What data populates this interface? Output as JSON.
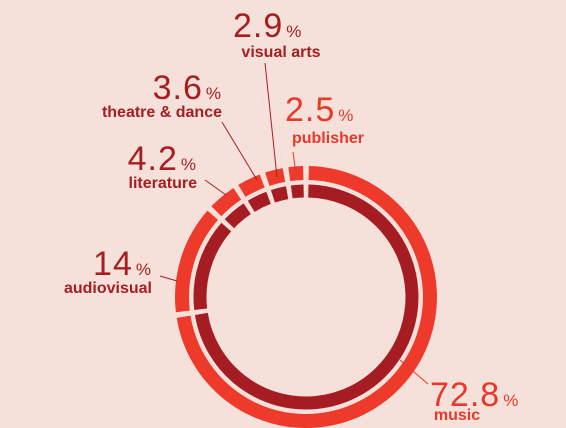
{
  "chart_data": {
    "type": "donut",
    "categories": [
      "music",
      "audiovisual",
      "literature",
      "theatre & dance",
      "visual arts",
      "publisher"
    ],
    "values": [
      72.8,
      14,
      4.2,
      3.6,
      2.9,
      2.5
    ],
    "unit": "%",
    "colors": [
      "#e8382a",
      "#a61e22",
      "#a61e22",
      "#a61e22",
      "#a61e22",
      "#e8382a"
    ],
    "ring_colors": [
      "#ee3a2a",
      "#a51d23"
    ]
  }
}
